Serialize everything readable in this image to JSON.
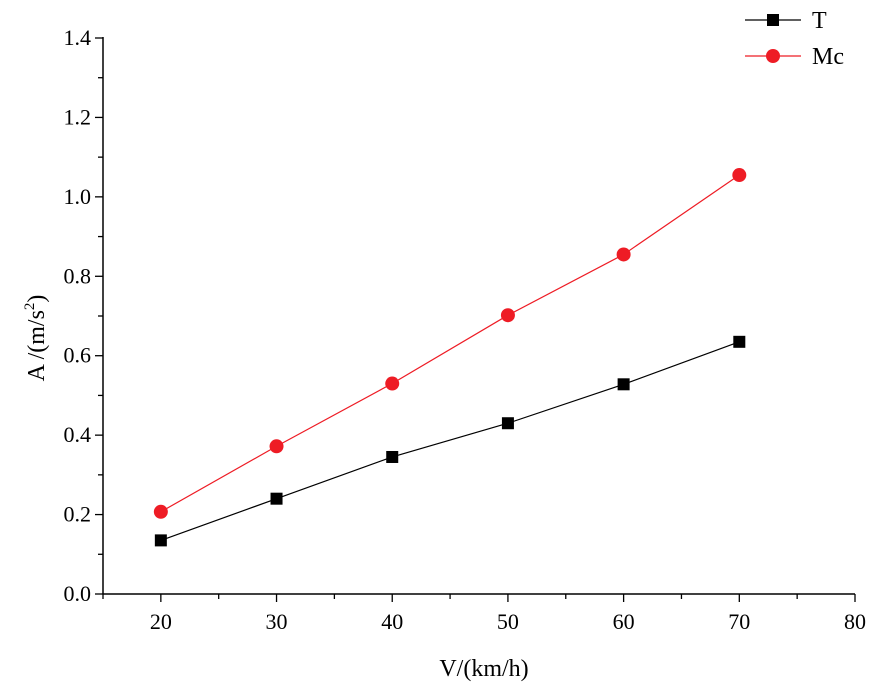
{
  "chart_data": {
    "type": "line",
    "title": "",
    "xlabel": "V/(km/h)",
    "ylabel": {
      "main": "A /(m/s",
      "superscript": "2",
      "close": ")"
    },
    "xlim": [
      15,
      80
    ],
    "ylim": [
      0.0,
      1.4
    ],
    "xticks": [
      "20",
      "30",
      "40",
      "50",
      "60",
      "70",
      "80"
    ],
    "yticks": [
      "0.0",
      "0.2",
      "0.4",
      "0.6",
      "0.8",
      "1.0",
      "1.2",
      "1.4"
    ],
    "x": [
      20,
      30,
      40,
      50,
      60,
      70
    ],
    "grid": false,
    "legend_position": "top-right",
    "series": [
      {
        "name": "T",
        "values": [
          0.135,
          0.24,
          0.345,
          0.43,
          0.528,
          0.635
        ],
        "color": "#000000",
        "marker": "square"
      },
      {
        "name": "Mc",
        "values": [
          0.207,
          0.372,
          0.53,
          0.702,
          0.855,
          1.055
        ],
        "color": "#ee1c25",
        "marker": "circle"
      }
    ]
  }
}
